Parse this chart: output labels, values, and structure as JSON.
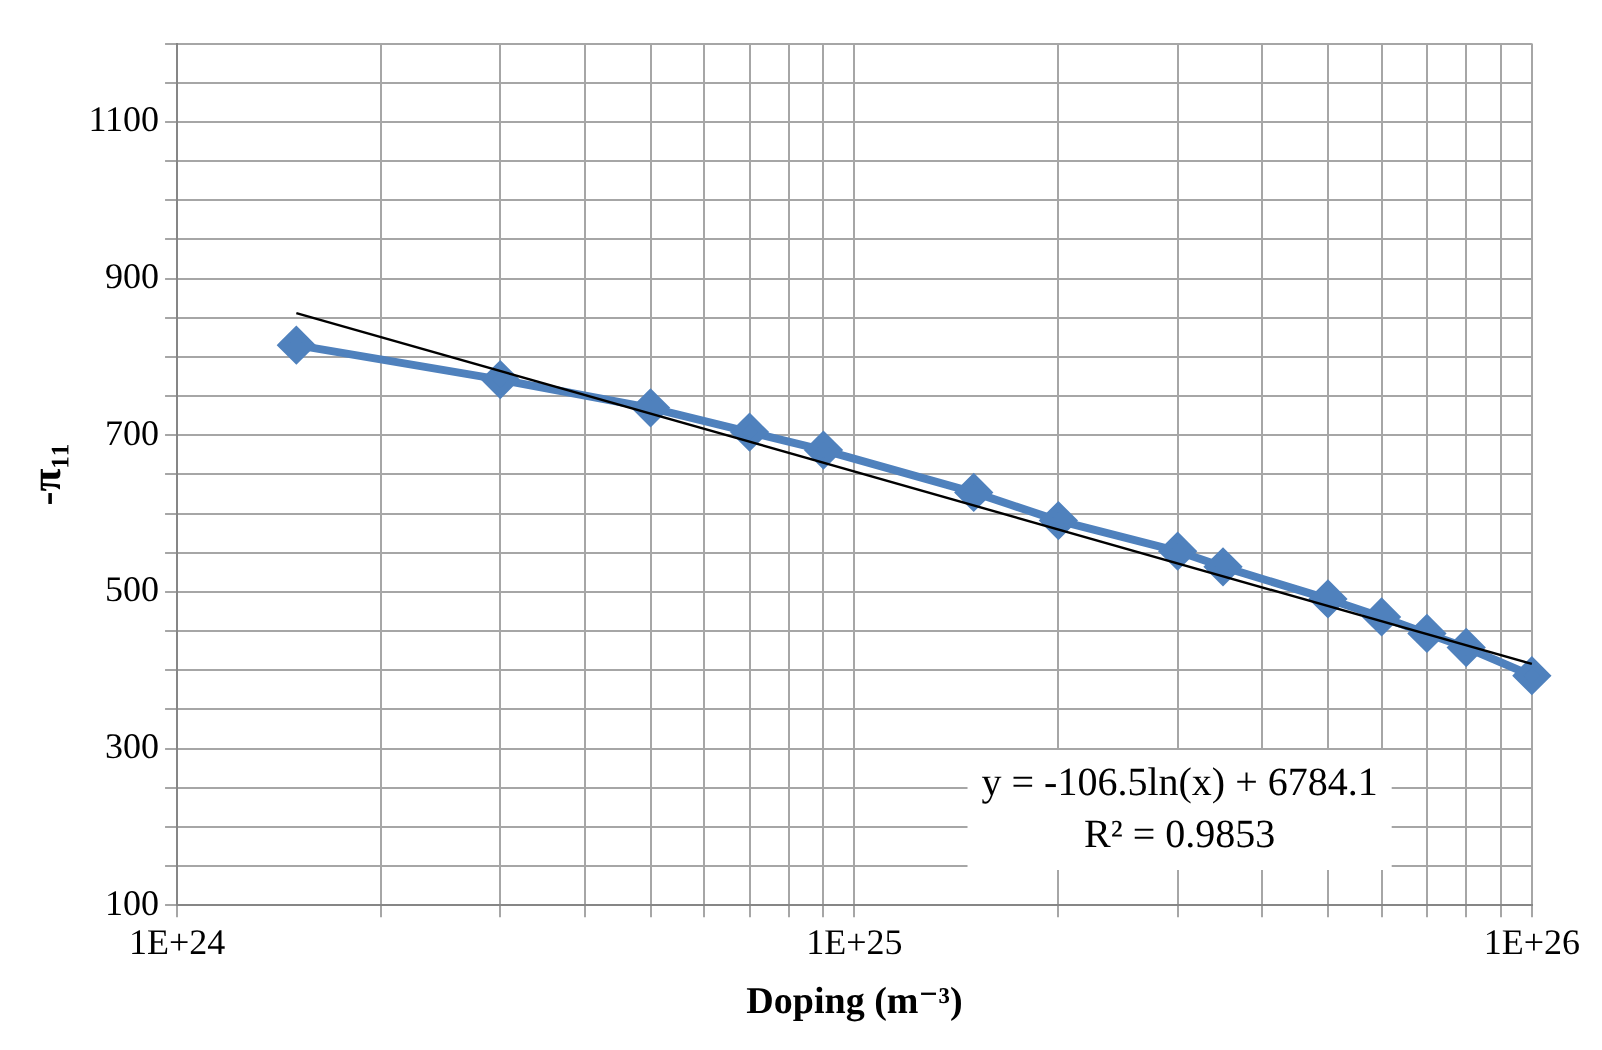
{
  "chart_data": {
    "type": "line",
    "xlabel": "Doping (m⁻³)",
    "ylabel": "-π₁₁",
    "log": "x",
    "grid": true,
    "legend": false,
    "marker": "diamond",
    "xlim": [
      1e+24,
      1e+26
    ],
    "xticks": [
      {
        "value": 1e+24,
        "label": "1E+24"
      },
      {
        "value": 2e+24,
        "label": null
      },
      {
        "value": 3e+24,
        "label": null
      },
      {
        "value": 4e+24,
        "label": null
      },
      {
        "value": 5e+24,
        "label": null
      },
      {
        "value": 6e+24,
        "label": null
      },
      {
        "value": 7e+24,
        "label": null
      },
      {
        "value": 8e+24,
        "label": null
      },
      {
        "value": 9e+24,
        "label": null
      },
      {
        "value": 1e+25,
        "label": "1E+25"
      },
      {
        "value": 2e+25,
        "label": null
      },
      {
        "value": 3e+25,
        "label": null
      },
      {
        "value": 4e+25,
        "label": null
      },
      {
        "value": 5e+25,
        "label": null
      },
      {
        "value": 6e+25,
        "label": null
      },
      {
        "value": 7e+25,
        "label": null
      },
      {
        "value": 8e+25,
        "label": null
      },
      {
        "value": 9e+25,
        "label": null
      },
      {
        "value": 1e+26,
        "label": "1E+26"
      }
    ],
    "ylim": [
      100,
      1200
    ],
    "yticks": [
      100,
      {
        "value": 150,
        "label": null
      },
      {
        "value": 200,
        "label": null
      },
      {
        "value": 250,
        "label": null
      },
      300,
      {
        "value": 350,
        "label": null
      },
      {
        "value": 400,
        "label": null
      },
      {
        "value": 450,
        "label": null
      },
      500,
      {
        "value": 550,
        "label": null
      },
      {
        "value": 600,
        "label": null
      },
      {
        "value": 650,
        "label": null
      },
      700,
      {
        "value": 750,
        "label": null
      },
      {
        "value": 800,
        "label": null
      },
      {
        "value": 850,
        "label": null
      },
      900,
      {
        "value": 950,
        "label": null
      },
      {
        "value": 1000,
        "label": null
      },
      {
        "value": 1050,
        "label": null
      },
      1100,
      {
        "value": 1150,
        "label": null
      },
      {
        "value": 1200,
        "label": null
      }
    ],
    "series": [
      {
        "color": "#4f81bd",
        "x": [
          1.5e+24,
          3e+24,
          5e+24,
          7e+24,
          9e+24,
          1.5e+25,
          2e+25,
          3e+25,
          3.5e+25,
          5e+25,
          6e+25,
          7e+25,
          8e+25,
          1e+26
        ],
        "values": [
          815,
          771,
          735,
          704,
          681,
          627,
          591,
          552,
          532,
          491,
          468,
          447,
          429,
          393
        ]
      },
      {
        "color": "#000000",
        "marker": "none",
        "x": [
          1.5e+24,
          1e+26
        ],
        "values": [
          856,
          408
        ]
      }
    ],
    "annotations": [
      "y = -106.5ln(x) + 6784.1",
      "R² = 0.9853"
    ]
  }
}
